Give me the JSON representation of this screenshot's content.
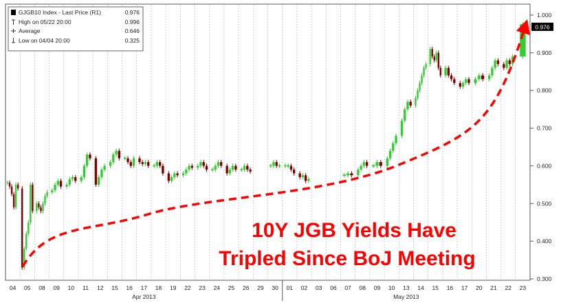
{
  "legend": {
    "title": "GJGB10 Index - Last Price (R1)",
    "title_value": "0.976",
    "rows": [
      {
        "icon": "high-marker-icon",
        "label": "High on 05/22 20:00",
        "value": "0.996"
      },
      {
        "icon": "average-marker-icon",
        "label": "Average",
        "value": "0.646"
      },
      {
        "icon": "low-marker-icon",
        "label": "Low on 04/04 20:00",
        "value": "0.325"
      }
    ]
  },
  "annotation": {
    "line1": "10Y JGB Yields Have",
    "line2": "Tripled Since BoJ Meeting"
  },
  "last_price_tag": "0.976",
  "colors": {
    "up_candle": "#33cc33",
    "down_candle": "#800000",
    "annotation": "#ff0000",
    "grid": "#bbbbbb",
    "price_tag_bg": "#000000"
  },
  "chart_data": {
    "type": "candlestick",
    "title": "GJGB10 Index - Last Price (R1)",
    "y_axis_position": "right",
    "ylim": [
      0.3,
      1.0
    ],
    "y_ticks": [
      "1.000",
      "0.900",
      "0.800",
      "0.700",
      "0.600",
      "0.500",
      "0.400",
      "0.300"
    ],
    "grid": "vertical dashed",
    "legend_position": "top-left",
    "x_day_labels": [
      "04",
      "05",
      "08",
      "09",
      "10",
      "11",
      "12",
      "15",
      "16",
      "17",
      "18",
      "19",
      "22",
      "23",
      "24",
      "25",
      "26",
      "29",
      "30",
      "01",
      "02",
      "03",
      "06",
      "07",
      "08",
      "09",
      "10",
      "13",
      "14",
      "15",
      "16",
      "17",
      "20",
      "21",
      "22",
      "23"
    ],
    "month_labels": [
      {
        "label": "Apr 2013",
        "start": 0,
        "end": 19
      },
      {
        "label": "May 2013",
        "start": 19,
        "end": 36
      }
    ],
    "days": [
      {
        "date": "04",
        "values": [
          0.555,
          0.545,
          0.525,
          0.49,
          0.55,
          0.54
        ]
      },
      {
        "date": "05",
        "values": [
          0.33,
          0.38,
          0.42,
          0.45,
          0.55,
          0.48
        ]
      },
      {
        "date": "08",
        "values": [
          0.5,
          0.49,
          0.48,
          0.5,
          0.52,
          0.53
        ]
      },
      {
        "date": "09",
        "values": [
          0.535,
          0.55,
          0.56,
          0.545
        ]
      },
      {
        "date": "10",
        "values": [
          0.55,
          0.565,
          0.57,
          0.56
        ]
      },
      {
        "date": "11",
        "values": [
          0.57,
          0.6,
          0.63,
          0.62
        ]
      },
      {
        "date": "12",
        "values": [
          0.55,
          0.57,
          0.59,
          0.6
        ]
      },
      {
        "date": "15",
        "values": [
          0.61,
          0.63,
          0.64,
          0.62
        ]
      },
      {
        "date": "16",
        "values": [
          0.62,
          0.61,
          0.6,
          0.62
        ]
      },
      {
        "date": "17",
        "values": [
          0.61,
          0.605,
          0.61,
          0.6
        ]
      },
      {
        "date": "18",
        "values": [
          0.6,
          0.61,
          0.6,
          0.58
        ]
      },
      {
        "date": "19",
        "values": [
          0.56,
          0.57,
          0.58,
          0.575
        ]
      },
      {
        "date": "22",
        "values": [
          0.58,
          0.59,
          0.6,
          0.595
        ]
      },
      {
        "date": "23",
        "values": [
          0.6,
          0.61,
          0.6,
          0.59
        ]
      },
      {
        "date": "24",
        "values": [
          0.59,
          0.6,
          0.61,
          0.6
        ]
      },
      {
        "date": "25",
        "values": [
          0.58,
          0.59,
          0.6,
          0.59
        ]
      },
      {
        "date": "26",
        "values": [
          0.59,
          0.6,
          0.59,
          0.585
        ]
      },
      {
        "date": "29",
        "values": []
      },
      {
        "date": "30",
        "values": [
          0.6,
          0.61,
          0.6,
          0.6
        ]
      },
      {
        "date": "01",
        "values": [
          0.6,
          0.6,
          0.59,
          0.58
        ]
      },
      {
        "date": "02",
        "values": [
          0.57,
          0.575,
          0.56,
          0.565
        ]
      },
      {
        "date": "03",
        "values": []
      },
      {
        "date": "06",
        "values": []
      },
      {
        "date": "07",
        "values": [
          0.575,
          0.58,
          0.575
        ]
      },
      {
        "date": "08",
        "values": [
          0.59,
          0.6,
          0.61,
          0.6
        ]
      },
      {
        "date": "09",
        "values": [
          0.6,
          0.61,
          0.6
        ]
      },
      {
        "date": "10",
        "values": [
          0.62,
          0.64,
          0.66,
          0.68
        ]
      },
      {
        "date": "13",
        "values": [
          0.72,
          0.75,
          0.77,
          0.76
        ]
      },
      {
        "date": "14",
        "values": [
          0.78,
          0.8,
          0.82,
          0.84,
          0.86,
          0.87
        ]
      },
      {
        "date": "15",
        "values": [
          0.91,
          0.89,
          0.88,
          0.9,
          0.86,
          0.84
        ]
      },
      {
        "date": "16",
        "values": [
          0.86,
          0.84,
          0.83,
          0.82
        ]
      },
      {
        "date": "17",
        "values": [
          0.81,
          0.82,
          0.83,
          0.82
        ]
      },
      {
        "date": "20",
        "values": [
          0.83,
          0.84,
          0.83
        ]
      },
      {
        "date": "21",
        "values": [
          0.84,
          0.86,
          0.88,
          0.87
        ]
      },
      {
        "date": "22",
        "values": [
          0.86,
          0.88,
          0.87,
          0.89
        ]
      },
      {
        "date": "23",
        "values": [
          0.976
        ]
      }
    ]
  }
}
